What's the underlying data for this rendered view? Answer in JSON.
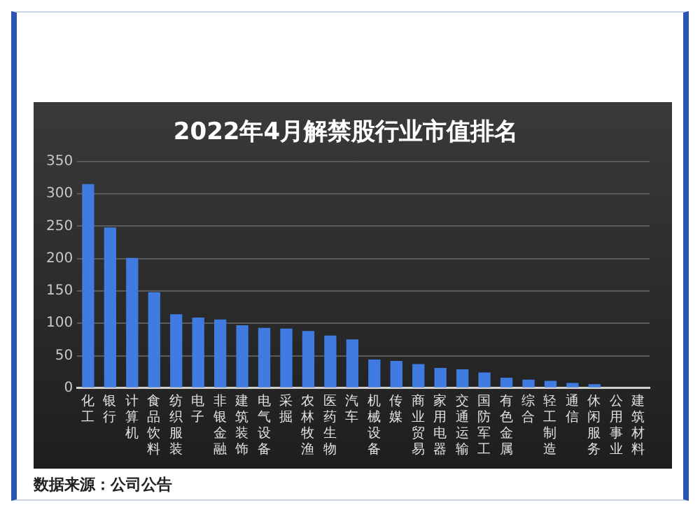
{
  "chart_data": {
    "type": "bar",
    "title": "2022年4月解禁股行业市值排名",
    "categories": [
      "化工",
      "银行",
      "计算机",
      "食品饮料",
      "纺织服装",
      "电子",
      "非银金融",
      "建筑装饰",
      "电气设备",
      "采掘",
      "农林牧渔",
      "医药生物",
      "汽车",
      "机械设备",
      "传媒",
      "商业贸易",
      "家用电器",
      "交通运输",
      "国防军工",
      "有色金属",
      "综合",
      "轻工制造",
      "通信",
      "休闲服务",
      "公用事业",
      "建筑材料"
    ],
    "values": [
      315,
      248,
      201,
      148,
      114,
      109,
      106,
      97,
      93,
      92,
      88,
      81,
      75,
      44,
      42,
      37,
      31,
      29,
      24,
      16,
      13,
      11,
      8,
      6,
      0,
      0
    ],
    "color": "#3f7be0",
    "ylim": [
      0,
      350
    ],
    "yticks": [
      0,
      50,
      100,
      150,
      200,
      250,
      300,
      350
    ],
    "grid": "y",
    "annotations": [
      "数据来源：公司公告"
    ]
  }
}
